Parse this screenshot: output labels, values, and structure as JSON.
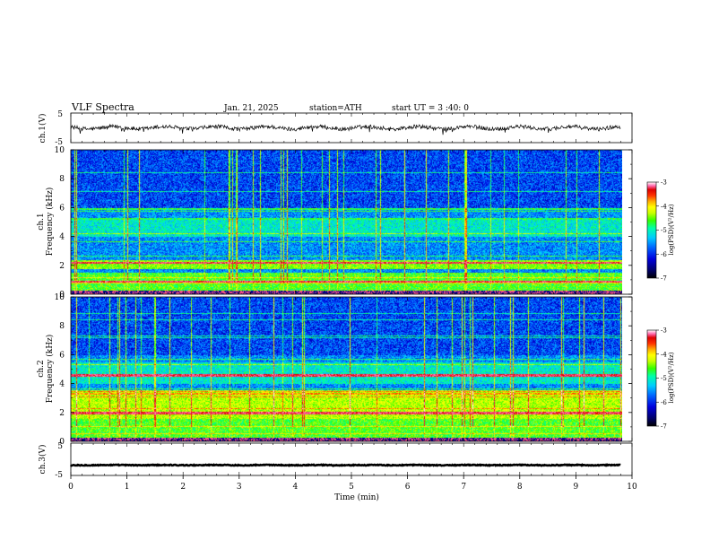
{
  "header": {
    "title": "VLF  Spectra",
    "date": "Jan. 21, 2025",
    "station": "station=ATH",
    "start": "start  UT  =   3  :40: 0"
  },
  "colors": {
    "colormap": [
      "#000066",
      "#0000dd",
      "#0066ff",
      "#00ccff",
      "#00ffaa",
      "#33ff00",
      "#ccff00",
      "#ffff00",
      "#ffaa00",
      "#ff3300",
      "#dd0000",
      "#ff66aa",
      "#ffffff"
    ]
  },
  "chart_data": [
    {
      "type": "line",
      "panel": "ch1-waveform",
      "ylabel": "ch.1(V)",
      "ylim": [
        -5,
        5
      ],
      "yticks": [
        "5",
        "-5"
      ],
      "xlim": [
        0,
        10
      ],
      "approx_level": 0,
      "approx_range": [
        -1.2,
        1.2
      ]
    },
    {
      "type": "heatmap",
      "panel": "ch1-spectrogram",
      "ylabel": [
        "ch.1",
        "Frequency  (kHz)"
      ],
      "ylim": [
        0,
        10
      ],
      "yticks": [
        "0",
        "2",
        "4",
        "6",
        "8",
        "10"
      ],
      "xlim": [
        0,
        9.8
      ],
      "colorbar": {
        "label": "log(PSD)(V²/Hz)",
        "ticks": [
          "-3",
          "-4",
          "-5",
          "-6",
          "-7"
        ],
        "range": [
          -7,
          -3
        ]
      },
      "features": {
        "strong_band_khz": [
          1.8,
          2.4
        ],
        "mid_band_khz": [
          0.3,
          1.5
        ],
        "weak_band_khz": [
          4.0,
          5.2
        ],
        "intense_lines_khz": [
          0.9,
          2.2
        ]
      }
    },
    {
      "type": "heatmap",
      "panel": "ch2-spectrogram",
      "ylabel": [
        "ch.2",
        "Frequency  (kHz)"
      ],
      "ylim": [
        0,
        10
      ],
      "yticks": [
        "0",
        "2",
        "4",
        "6",
        "8",
        "10"
      ],
      "xlim": [
        0,
        9.8
      ],
      "colorbar": {
        "label": "log(PSD)(V²/Hz)",
        "ticks": [
          "-3",
          "-4",
          "-5",
          "-6",
          "-7"
        ],
        "range": [
          -7,
          -3
        ]
      },
      "features": {
        "strong_band_khz": [
          1.6,
          3.6
        ],
        "mid_band_khz": [
          0.3,
          1.6
        ],
        "weak_band_khz": [
          4.0,
          5.5
        ],
        "intense_lines_khz": [
          2.0,
          4.6
        ]
      }
    },
    {
      "type": "line",
      "panel": "ch3-waveform",
      "ylabel": "ch.3(V)",
      "ylim": [
        -5,
        5
      ],
      "yticks": [
        "5",
        "-5"
      ],
      "xlim": [
        0,
        10
      ],
      "approx_level": -1.8,
      "approx_range": [
        -2.3,
        -1.3
      ]
    }
  ],
  "x_axis": {
    "label": "Time  (min)",
    "ticks": [
      "0",
      "1",
      "2",
      "3",
      "4",
      "5",
      "6",
      "7",
      "8",
      "9",
      "10"
    ],
    "range": [
      0,
      10
    ]
  }
}
